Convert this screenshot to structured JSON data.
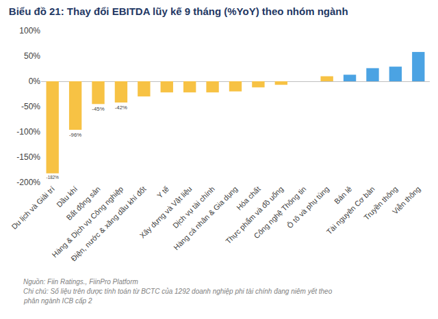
{
  "chart_data": {
    "type": "bar",
    "title": "Biểu đồ 21: Thay đổi EBITDA lũy kế 9 tháng (%YoY) theo nhóm ngành",
    "categories": [
      "Du lịch và Giải trí",
      "Dầu khí",
      "Bất động sản",
      "Hàng & Dịch vụ Công nghiệp",
      "Điện, nước & xăng dầu khí đốt",
      "Y tế",
      "Xây dựng và Vật liệu",
      "Dịch vụ tài chính",
      "Hàng cá nhân & Gia dụng",
      "Hóa chất",
      "Thực phẩm và đồ uống",
      "Công nghệ Thông tin",
      "Ô tô và phụ tùng",
      "Bán lẻ",
      "Tài nguyên Cơ bản",
      "Truyền thông",
      "Viễn thông"
    ],
    "values": [
      -182,
      -96,
      -45,
      -42,
      -30,
      -22,
      -22,
      -22,
      -20,
      -12,
      -7,
      0,
      10,
      13,
      26,
      29,
      58
    ],
    "value_labels": [
      "-182%",
      "-96%",
      "-45%",
      "-42%",
      null,
      null,
      null,
      null,
      null,
      null,
      null,
      null,
      null,
      null,
      null,
      null,
      null
    ],
    "colors": [
      "#F7C244",
      "#F7C244",
      "#F7C244",
      "#F7C244",
      "#F7C244",
      "#F7C244",
      "#F7C244",
      "#F7C244",
      "#F7C244",
      "#F7C244",
      "#F7C244",
      "#F7C244",
      "#F7C244",
      "#4BA3E3",
      "#4BA3E3",
      "#4BA3E3",
      "#4BA3E3"
    ],
    "ylim": [
      -200,
      100
    ],
    "yticks": [
      {
        "value": -200,
        "label": "-200%"
      },
      {
        "value": -150,
        "label": "-150%"
      },
      {
        "value": -100,
        "label": "-100%"
      },
      {
        "value": -50,
        "label": "-50%"
      },
      {
        "value": 0,
        "label": "0%"
      },
      {
        "value": 50,
        "label": "50%"
      },
      {
        "value": 100,
        "label": "100%"
      }
    ],
    "grid": false,
    "notes": [
      "Nguồn: Fiin Ratings., FiinPro Platform",
      "Chi chú: Số liệu trên được tính toán từ BCTC của 1292 doanh nghiệp phi tài chính đang niêm yết theo",
      "phân ngành ICB cấp 2"
    ]
  }
}
